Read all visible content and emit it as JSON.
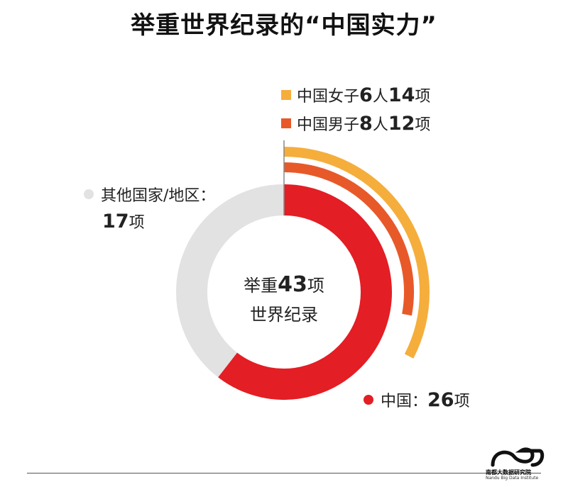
{
  "title": "举重世界纪录的“中国实力”",
  "legend": [
    {
      "label": "中国女子",
      "num1": "6",
      "unit1": "人",
      "num2": "14",
      "unit2": "项",
      "color": "#F5AE3C"
    },
    {
      "label": "中国男子",
      "num1": "8",
      "unit1": "人",
      "num2": "12",
      "unit2": "项",
      "color": "#E8592A"
    }
  ],
  "other": {
    "label": "其他国家/地区：",
    "value": "17",
    "unit": "项",
    "color": "#E2E2E2"
  },
  "china": {
    "label": "中国：",
    "value": "26",
    "unit": "项",
    "color": "#E31E25"
  },
  "center": {
    "prefix": "举重",
    "num": "43",
    "unit": "项",
    "line2": "世界纪录"
  },
  "logo": {
    "name": "南都大数据研究院",
    "en": "Nandu Big Data Institute"
  },
  "chart_data": {
    "type": "pie",
    "title": "举重世界纪录的“中国实力”",
    "total": 43,
    "slices": [
      {
        "name": "中国",
        "value": 26,
        "color": "#E31E25"
      },
      {
        "name": "其他国家/地区",
        "value": 17,
        "color": "#E2E2E2"
      }
    ],
    "sub_breakdown_of_china": [
      {
        "name": "中国女子",
        "athletes": 6,
        "records": 14,
        "color": "#F5AE3C"
      },
      {
        "name": "中国男子",
        "athletes": 8,
        "records": 12,
        "color": "#E8592A"
      }
    ]
  }
}
